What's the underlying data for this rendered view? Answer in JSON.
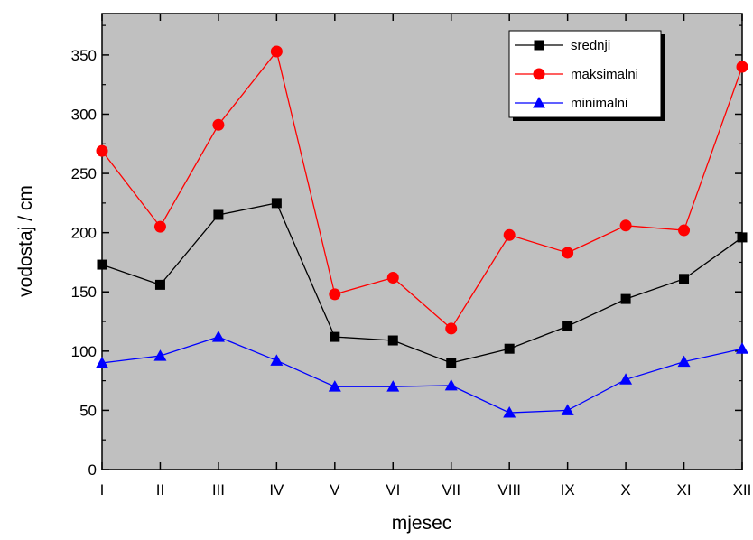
{
  "chart_data": {
    "type": "line",
    "title": "",
    "xlabel": "mjesec",
    "ylabel": "vodostaj / cm",
    "categories": [
      "I",
      "II",
      "III",
      "IV",
      "V",
      "VI",
      "VII",
      "VIII",
      "IX",
      "X",
      "XI",
      "XII"
    ],
    "ylim": [
      0,
      385
    ],
    "yticks": [
      0,
      50,
      100,
      150,
      200,
      250,
      300,
      350
    ],
    "ytick_labels": [
      "0",
      "50",
      "100",
      "150",
      "200",
      "250",
      "300",
      "350"
    ],
    "grid": false,
    "legend_position": "top-right",
    "plot_background": "#c0c0c0",
    "series": [
      {
        "name": "srednji",
        "color": "#000000",
        "marker": "square",
        "values": [
          173,
          156,
          215,
          225,
          112,
          109,
          90,
          102,
          121,
          144,
          161,
          196
        ]
      },
      {
        "name": "maksimalni",
        "color": "#ff0000",
        "marker": "circle",
        "values": [
          269,
          205,
          291,
          353,
          148,
          162,
          119,
          198,
          183,
          206,
          202,
          340
        ]
      },
      {
        "name": "minimalni",
        "color": "#0000ff",
        "marker": "triangle",
        "values": [
          90,
          96,
          112,
          92,
          70,
          70,
          71,
          48,
          50,
          76,
          91,
          102
        ]
      }
    ]
  }
}
